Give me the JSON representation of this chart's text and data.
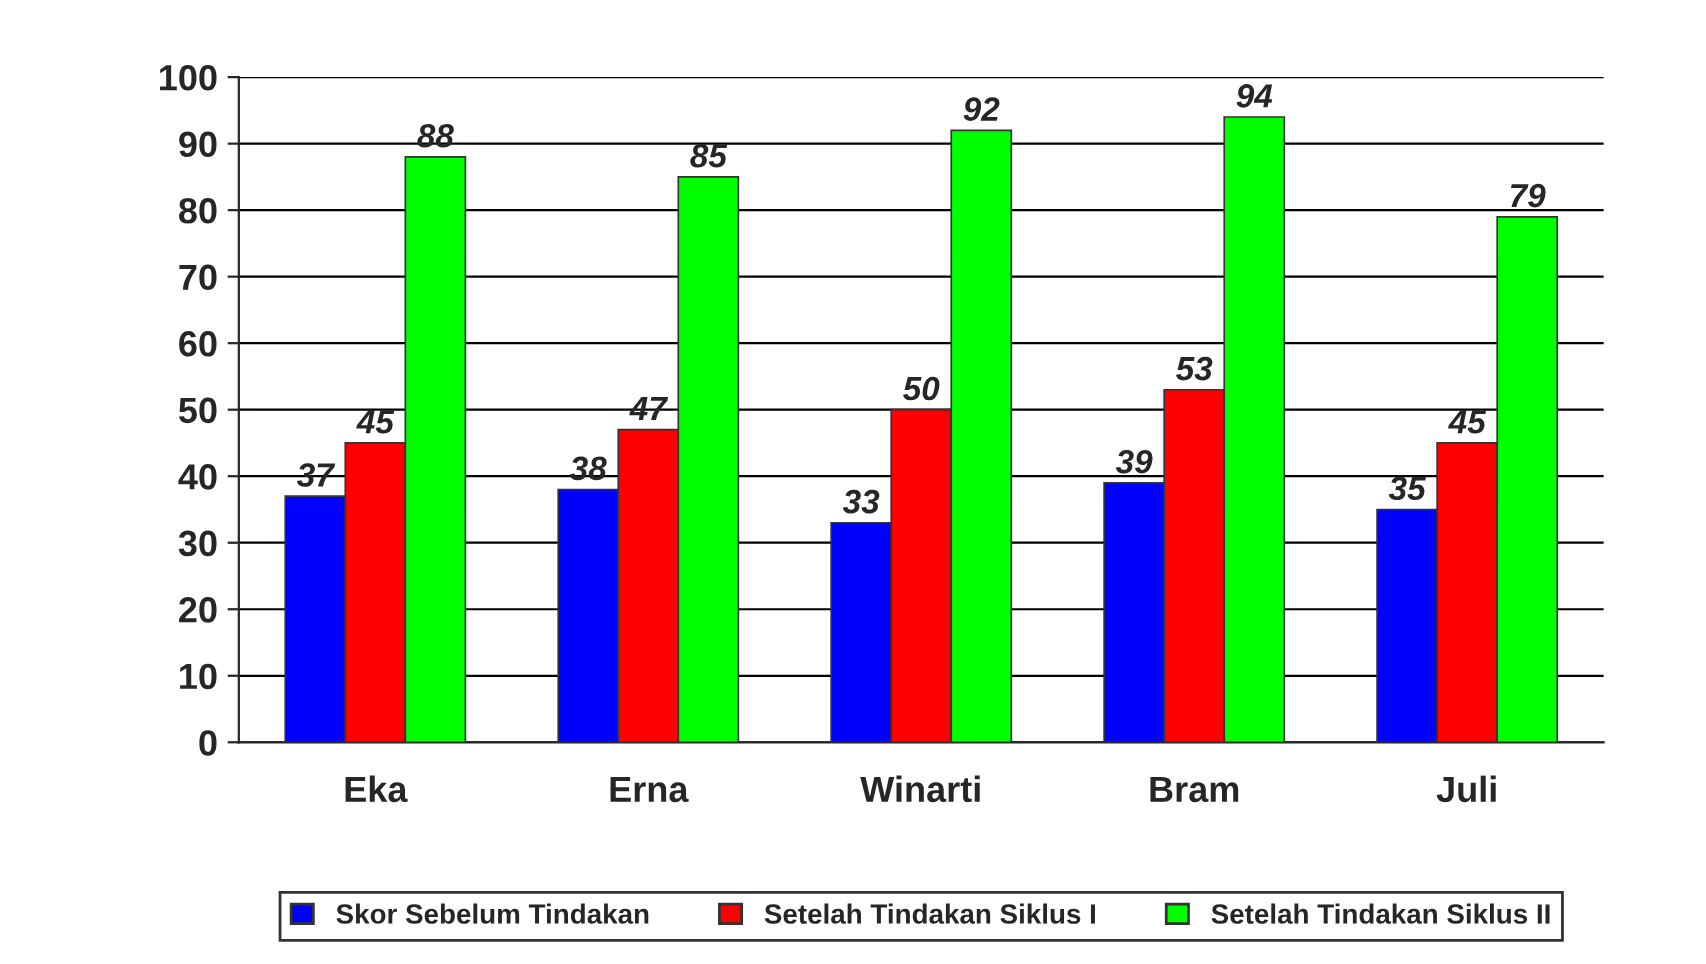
{
  "chart_data": {
    "type": "bar",
    "categories": [
      "Eka",
      "Erna",
      "Winarti",
      "Bram",
      "Juli"
    ],
    "series": [
      {
        "name": "Skor Sebelum Tindakan",
        "color": "#0000ff",
        "values": [
          37,
          38,
          33,
          39,
          35
        ]
      },
      {
        "name": "Setelah Tindakan Siklus I",
        "color": "#ff0000",
        "values": [
          45,
          47,
          50,
          53,
          45
        ]
      },
      {
        "name": "Setelah Tindakan Siklus II",
        "color": "#00ff00",
        "values": [
          88,
          85,
          92,
          94,
          79
        ]
      }
    ],
    "ylim": [
      0,
      100
    ],
    "yticks": [
      0,
      10,
      20,
      30,
      40,
      50,
      60,
      70,
      80,
      90,
      100
    ],
    "grid": "y",
    "legend": "bottom",
    "data_labels": true
  }
}
